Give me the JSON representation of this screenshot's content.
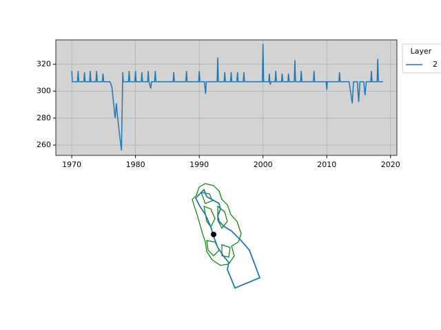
{
  "chart_data": {
    "type": "line",
    "x": [
      1970.0,
      1970.1,
      1970.9,
      1971.0,
      1971.1,
      1971.9,
      1972.0,
      1972.1,
      1972.8,
      1972.9,
      1973.0,
      1973.8,
      1973.9,
      1974.0,
      1974.8,
      1974.9,
      1975.0,
      1976.0,
      1976.3,
      1976.8,
      1977.0,
      1977.2,
      1977.8,
      1978.0,
      1978.1,
      1978.9,
      1979.0,
      1979.1,
      1979.9,
      1980.0,
      1980.1,
      1980.9,
      1981.0,
      1981.1,
      1981.9,
      1982.0,
      1982.1,
      1982.4,
      1982.5,
      1983.0,
      1983.1,
      1983.2,
      1985.9,
      1986.0,
      1986.1,
      1987.9,
      1988.0,
      1988.1,
      1989.9,
      1990.0,
      1990.1,
      1990.8,
      1991.0,
      1991.1,
      1992.8,
      1992.9,
      1993.0,
      1993.9,
      1994.0,
      1994.1,
      1994.9,
      1995.0,
      1995.1,
      1995.9,
      1996.0,
      1996.1,
      1996.9,
      1997.0,
      1997.1,
      1999.9,
      2000.0,
      2000.1,
      2000.9,
      2001.0,
      2001.1,
      2001.3,
      2001.9,
      2002.0,
      2002.1,
      2002.9,
      2003.0,
      2003.1,
      2003.9,
      2004.0,
      2004.1,
      2004.9,
      2005.0,
      2005.1,
      2005.9,
      2006.0,
      2006.1,
      2007.9,
      2008.0,
      2008.1,
      2009.9,
      2010.0,
      2010.1,
      2011.9,
      2012.0,
      2012.1,
      2013.5,
      2014.0,
      2014.2,
      2014.8,
      2015.0,
      2015.2,
      2015.8,
      2016.0,
      2016.2,
      2016.9,
      2017.0,
      2017.1,
      2017.9,
      2018.0,
      2018.1,
      2018.8
    ],
    "series": [
      {
        "name": "2",
        "color": "#1f77b4",
        "values": [
          315,
          307,
          307,
          315,
          307,
          307,
          314,
          307,
          307,
          315,
          307,
          307,
          315,
          307,
          307,
          313,
          307,
          307,
          303,
          280,
          291,
          280,
          256,
          314,
          307,
          307,
          315,
          307,
          307,
          315,
          307,
          307,
          314,
          307,
          307,
          315,
          307,
          302,
          307,
          307,
          315,
          307,
          307,
          314,
          307,
          307,
          315,
          307,
          307,
          315,
          307,
          307,
          298,
          307,
          307,
          325,
          307,
          307,
          314,
          307,
          307,
          314,
          307,
          307,
          314,
          307,
          307,
          314,
          307,
          307,
          335,
          307,
          307,
          313,
          305,
          307,
          307,
          315,
          307,
          307,
          313,
          307,
          307,
          313,
          307,
          307,
          323,
          307,
          307,
          315,
          307,
          307,
          315,
          307,
          307,
          301,
          307,
          307,
          314,
          307,
          307,
          291,
          307,
          307,
          292,
          307,
          307,
          297,
          307,
          307,
          315,
          307,
          307,
          324,
          307,
          307
        ]
      }
    ],
    "xlim": [
      1967.5,
      2021
    ],
    "ylim": [
      252.4,
      338
    ],
    "xticks": [
      1970,
      1980,
      1990,
      2000,
      2010,
      2020
    ],
    "yticks": [
      260,
      280,
      300,
      320
    ],
    "grid": true,
    "legend_title": "Layer",
    "legend_position": "outside-upper-right",
    "background": "#d3d3d3"
  }
}
